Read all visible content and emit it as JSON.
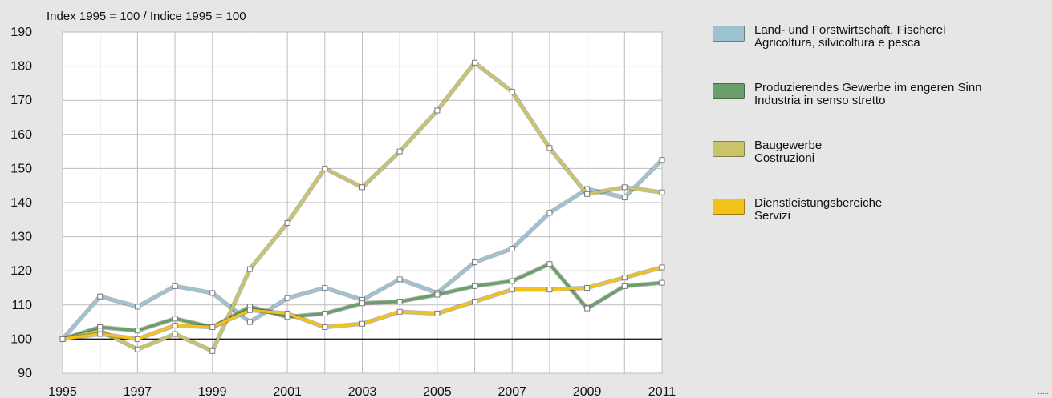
{
  "chart_data": {
    "type": "line",
    "note": "Index 1995 = 100 / Indice 1995 = 100",
    "x": [
      1995,
      1996,
      1997,
      1998,
      1999,
      2000,
      2001,
      2002,
      2003,
      2004,
      2005,
      2006,
      2007,
      2008,
      2009,
      2010,
      2011
    ],
    "x_tick_labels": [
      "1995",
      "1997",
      "1999",
      "2001",
      "2003",
      "2005",
      "2007",
      "2009",
      "2011"
    ],
    "y_ticks": [
      90,
      100,
      110,
      120,
      130,
      140,
      150,
      160,
      170,
      180,
      190
    ],
    "ylim": [
      90,
      190
    ],
    "xlim": [
      1995,
      2011
    ],
    "grid": true,
    "reference_line": 100,
    "legend_position": "right",
    "series": [
      {
        "name_de": "Land- und Forstwirtschaft, Fischerei",
        "name_it": "Agricoltura, silvicoltura e pesca",
        "color": "#9dc3d3",
        "values": [
          100,
          112.5,
          109.5,
          115.5,
          113.5,
          105,
          112,
          115,
          111.5,
          117.5,
          113.5,
          122.5,
          126.5,
          137,
          144,
          141.5,
          152.5
        ]
      },
      {
        "name_de": "Produzierendes Gewerbe im engeren Sinn",
        "name_it": "Industria in senso stretto",
        "color": "#6a9f6a",
        "values": [
          100,
          103.5,
          102.5,
          106,
          103.5,
          109.5,
          106.5,
          107.5,
          110.5,
          111,
          113,
          115.5,
          117,
          122,
          109,
          115.5,
          116.5
        ]
      },
      {
        "name_de": "Baugewerbe",
        "name_it": "Costruzioni",
        "color": "#c9c46a",
        "values": [
          100,
          102.5,
          97,
          101.5,
          96.5,
          120.5,
          134,
          150,
          144.5,
          155,
          167,
          181,
          172.5,
          156,
          142.5,
          144.5,
          143
        ]
      },
      {
        "name_de": "Dienstleistungsbereiche",
        "name_it": "Servizi",
        "color": "#f3c21a",
        "values": [
          100,
          101.5,
          100,
          104,
          103.5,
          108.5,
          107.5,
          103.5,
          104.5,
          108,
          107.5,
          111,
          114.5,
          114.5,
          115,
          118,
          121
        ]
      }
    ]
  },
  "footer": {
    "dots": "....."
  }
}
